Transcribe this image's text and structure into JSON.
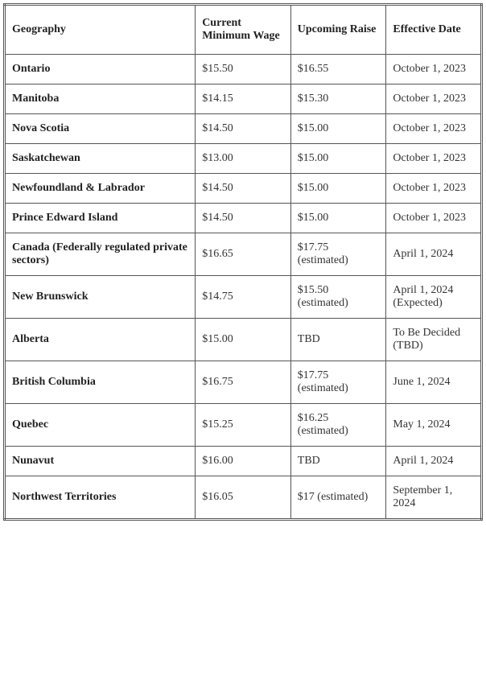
{
  "table": {
    "columns": [
      {
        "label": "Geography",
        "class": "col-geo"
      },
      {
        "label": "Current Minimum Wage",
        "class": "col-current"
      },
      {
        "label": "Upcoming Raise",
        "class": "col-upcoming"
      },
      {
        "label": "Effective Date",
        "class": "col-date"
      }
    ],
    "rows": [
      {
        "geography": "Ontario",
        "current": "$15.50",
        "upcoming": "$16.55",
        "date": "October 1, 2023"
      },
      {
        "geography": "Manitoba",
        "current": "$14.15",
        "upcoming": "$15.30",
        "date": "October 1, 2023"
      },
      {
        "geography": "Nova Scotia",
        "current": "$14.50",
        "upcoming": "$15.00",
        "date": "October 1, 2023"
      },
      {
        "geography": "Saskatchewan",
        "current": "$13.00",
        "upcoming": "$15.00",
        "date": "October 1, 2023"
      },
      {
        "geography": "Newfoundland & Labrador",
        "current": "$14.50",
        "upcoming": "$15.00",
        "date": "October 1, 2023"
      },
      {
        "geography": "Prince Edward Island",
        "current": "$14.50",
        "upcoming": "$15.00",
        "date": "October 1, 2023"
      },
      {
        "geography": "Canada (Federally regulated private sectors)",
        "current": "$16.65",
        "upcoming": "$17.75 (estimated)",
        "date": "April 1, 2024"
      },
      {
        "geography": "New Brunswick",
        "current": "$14.75",
        "upcoming": "$15.50 (estimated)",
        "date": "April 1, 2024 (Expected)"
      },
      {
        "geography": "Alberta",
        "current": "$15.00",
        "upcoming": "TBD",
        "date": "To Be Decided (TBD)"
      },
      {
        "geography": "British Columbia",
        "current": "$16.75",
        "upcoming": "$17.75 (estimated)",
        "date": "June 1, 2024"
      },
      {
        "geography": "Quebec",
        "current": "$15.25",
        "upcoming": "$16.25 (estimated)",
        "date": "May 1, 2024"
      },
      {
        "geography": "Nunavut",
        "current": "$16.00",
        "upcoming": "TBD",
        "date": "April 1, 2024"
      },
      {
        "geography": "Northwest Territories",
        "current": "$16.05",
        "upcoming": "$17 (estimated)",
        "date": "September 1, 2024"
      }
    ],
    "style": {
      "font_family": "Georgia, serif",
      "header_fontsize": 14,
      "cell_fontsize": 14,
      "border_color": "#555555",
      "text_color": "#333333",
      "header_weight": "bold",
      "geo_weight": "bold",
      "background_color": "#ffffff"
    }
  }
}
